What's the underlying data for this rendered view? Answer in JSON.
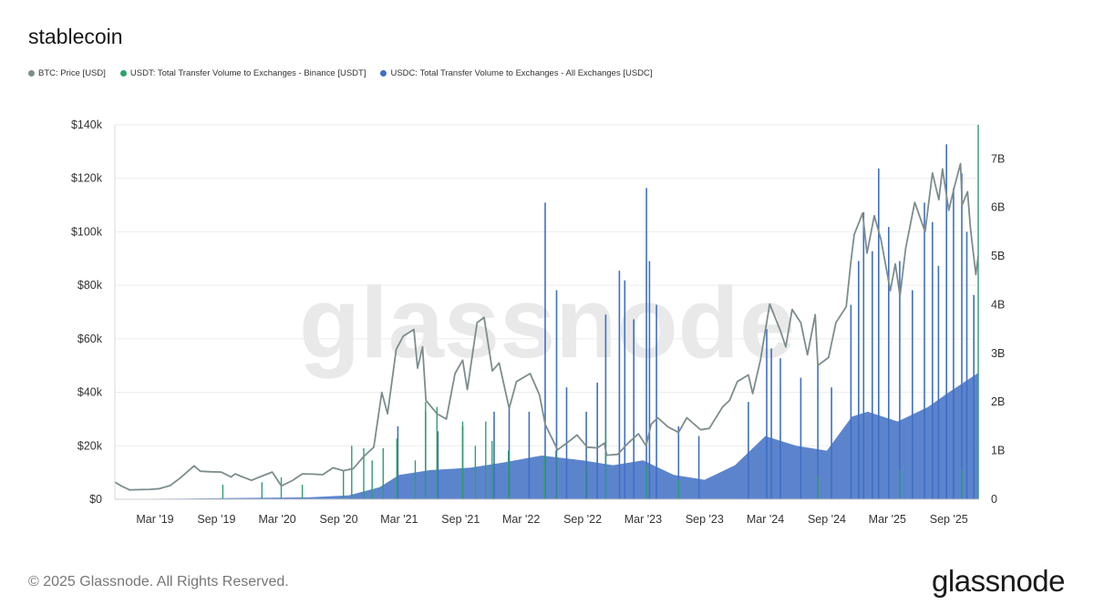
{
  "title": "stablecoin",
  "legend": [
    {
      "label": "BTC: Price [USD]",
      "color": "#7d8d8d"
    },
    {
      "label": "USDT: Total Transfer Volume to Exchanges - Binance [USDT]",
      "color": "#2f9e6e"
    },
    {
      "label": "USDC: Total Transfer Volume to Exchanges - All Exchanges [USDC]",
      "color": "#3f6fc4"
    }
  ],
  "watermark": "glassnode",
  "footer": {
    "copyright": "© 2025 Glassnode. All Rights Reserved.",
    "logo": "glassnode"
  },
  "chart_data": {
    "type": "line",
    "x_start": "2018-11-01",
    "x_end": "2025-11-28",
    "x_ticks": [
      {
        "date": "2019-03-01",
        "label": "Mar '19"
      },
      {
        "date": "2019-09-01",
        "label": "Sep '19"
      },
      {
        "date": "2020-03-01",
        "label": "Mar '20"
      },
      {
        "date": "2020-09-01",
        "label": "Sep '20"
      },
      {
        "date": "2021-03-01",
        "label": "Mar '21"
      },
      {
        "date": "2021-09-01",
        "label": "Sep '21"
      },
      {
        "date": "2022-03-01",
        "label": "Mar '22"
      },
      {
        "date": "2022-09-01",
        "label": "Sep '22"
      },
      {
        "date": "2023-03-01",
        "label": "Mar '23"
      },
      {
        "date": "2023-09-01",
        "label": "Sep '23"
      },
      {
        "date": "2024-03-01",
        "label": "Mar '24"
      },
      {
        "date": "2024-09-01",
        "label": "Sep '24"
      },
      {
        "date": "2025-03-01",
        "label": "Mar '25"
      },
      {
        "date": "2025-09-01",
        "label": "Sep '25"
      }
    ],
    "y_left": {
      "min": 0,
      "max": 140000,
      "ticks": [
        {
          "value": 0,
          "label": "$0"
        },
        {
          "value": 20000,
          "label": "$20k"
        },
        {
          "value": 40000,
          "label": "$40k"
        },
        {
          "value": 60000,
          "label": "$60k"
        },
        {
          "value": 80000,
          "label": "$80k"
        },
        {
          "value": 100000,
          "label": "$100k"
        },
        {
          "value": 120000,
          "label": "$120k"
        },
        {
          "value": 140000,
          "label": "$140k"
        }
      ]
    },
    "y_right": {
      "min": 0,
      "max": 7700000000,
      "ticks": [
        {
          "value": 0,
          "label": "0"
        },
        {
          "value": 1000000000,
          "label": "1B"
        },
        {
          "value": 2000000000,
          "label": "2B"
        },
        {
          "value": 3000000000,
          "label": "3B"
        },
        {
          "value": 4000000000,
          "label": "4B"
        },
        {
          "value": 5000000000,
          "label": "5B"
        },
        {
          "value": 6000000000,
          "label": "6B"
        },
        {
          "value": 7000000000,
          "label": "7B"
        }
      ]
    },
    "grid": true,
    "series": [
      {
        "name": "BTC: Price [USD]",
        "axis": "left",
        "color": "#7d8d8d",
        "points": [
          [
            "2018-11-01",
            6400
          ],
          [
            "2018-11-20",
            5000
          ],
          [
            "2018-12-15",
            3500
          ],
          [
            "2019-01-15",
            3600
          ],
          [
            "2019-02-15",
            3700
          ],
          [
            "2019-03-15",
            4000
          ],
          [
            "2019-04-15",
            5100
          ],
          [
            "2019-05-15",
            7900
          ],
          [
            "2019-06-26",
            12500
          ],
          [
            "2019-07-15",
            10500
          ],
          [
            "2019-08-15",
            10300
          ],
          [
            "2019-09-15",
            10200
          ],
          [
            "2019-10-15",
            8300
          ],
          [
            "2019-10-27",
            9500
          ],
          [
            "2019-11-15",
            8500
          ],
          [
            "2019-12-15",
            7100
          ],
          [
            "2020-01-15",
            8700
          ],
          [
            "2020-02-15",
            10200
          ],
          [
            "2020-03-13",
            5000
          ],
          [
            "2020-04-15",
            7000
          ],
          [
            "2020-05-15",
            9500
          ],
          [
            "2020-06-15",
            9400
          ],
          [
            "2020-07-15",
            9200
          ],
          [
            "2020-08-15",
            11800
          ],
          [
            "2020-09-15",
            10700
          ],
          [
            "2020-10-15",
            11500
          ],
          [
            "2020-11-15",
            16000
          ],
          [
            "2020-12-15",
            19500
          ],
          [
            "2021-01-08",
            40000
          ],
          [
            "2021-01-25",
            32000
          ],
          [
            "2021-02-20",
            56000
          ],
          [
            "2021-03-13",
            61000
          ],
          [
            "2021-04-14",
            63500
          ],
          [
            "2021-04-25",
            49000
          ],
          [
            "2021-05-10",
            57000
          ],
          [
            "2021-05-20",
            37000
          ],
          [
            "2021-06-22",
            32000
          ],
          [
            "2021-07-20",
            30000
          ],
          [
            "2021-08-15",
            47000
          ],
          [
            "2021-09-07",
            52000
          ],
          [
            "2021-09-21",
            41000
          ],
          [
            "2021-10-20",
            66000
          ],
          [
            "2021-11-10",
            68000
          ],
          [
            "2021-12-05",
            48000
          ],
          [
            "2021-12-25",
            51000
          ],
          [
            "2022-01-24",
            34000
          ],
          [
            "2022-02-15",
            44000
          ],
          [
            "2022-03-28",
            47000
          ],
          [
            "2022-04-25",
            39000
          ],
          [
            "2022-05-12",
            28000
          ],
          [
            "2022-06-18",
            18500
          ],
          [
            "2022-07-15",
            21000
          ],
          [
            "2022-08-15",
            24000
          ],
          [
            "2022-09-15",
            19500
          ],
          [
            "2022-10-15",
            19200
          ],
          [
            "2022-11-05",
            21000
          ],
          [
            "2022-11-12",
            16500
          ],
          [
            "2022-12-15",
            16800
          ],
          [
            "2023-01-15",
            21000
          ],
          [
            "2023-02-15",
            24500
          ],
          [
            "2023-03-10",
            20000
          ],
          [
            "2023-03-25",
            28000
          ],
          [
            "2023-04-14",
            30500
          ],
          [
            "2023-05-15",
            27000
          ],
          [
            "2023-06-15",
            25000
          ],
          [
            "2023-07-10",
            30500
          ],
          [
            "2023-08-20",
            26000
          ],
          [
            "2023-09-15",
            26500
          ],
          [
            "2023-10-25",
            34500
          ],
          [
            "2023-11-15",
            37000
          ],
          [
            "2023-12-08",
            44000
          ],
          [
            "2024-01-10",
            46500
          ],
          [
            "2024-01-23",
            39500
          ],
          [
            "2024-02-15",
            52000
          ],
          [
            "2024-03-14",
            73000
          ],
          [
            "2024-04-15",
            63000
          ],
          [
            "2024-05-01",
            57000
          ],
          [
            "2024-05-20",
            71000
          ],
          [
            "2024-06-15",
            66000
          ],
          [
            "2024-07-05",
            54000
          ],
          [
            "2024-07-28",
            69000
          ],
          [
            "2024-08-05",
            50000
          ],
          [
            "2024-09-06",
            53000
          ],
          [
            "2024-09-28",
            66000
          ],
          [
            "2024-10-29",
            72000
          ],
          [
            "2024-11-12",
            89000
          ],
          [
            "2024-11-22",
            99000
          ],
          [
            "2024-12-17",
            107000
          ],
          [
            "2024-12-30",
            92000
          ],
          [
            "2025-01-21",
            106000
          ],
          [
            "2025-02-10",
            97000
          ],
          [
            "2025-03-10",
            78000
          ],
          [
            "2025-03-25",
            88000
          ],
          [
            "2025-04-08",
            76000
          ],
          [
            "2025-04-25",
            94000
          ],
          [
            "2025-05-22",
            111000
          ],
          [
            "2025-06-22",
            100000
          ],
          [
            "2025-07-14",
            122000
          ],
          [
            "2025-08-02",
            112000
          ],
          [
            "2025-08-13",
            123500
          ],
          [
            "2025-09-01",
            108000
          ],
          [
            "2025-09-18",
            117000
          ],
          [
            "2025-10-06",
            125500
          ],
          [
            "2025-10-11",
            110000
          ],
          [
            "2025-10-27",
            115000
          ],
          [
            "2025-11-05",
            101000
          ],
          [
            "2025-11-21",
            84000
          ],
          [
            "2025-11-28",
            91000
          ]
        ]
      },
      {
        "name": "USDT: Total Transfer Volume to Exchanges - Binance [USDT]",
        "axis": "right",
        "color": "#2f9e6e",
        "spikes": [
          [
            "2019-09-20",
            300000000
          ],
          [
            "2020-01-15",
            350000000
          ],
          [
            "2020-03-13",
            450000000
          ],
          [
            "2020-05-15",
            300000000
          ],
          [
            "2020-09-15",
            600000000
          ],
          [
            "2020-10-10",
            1100000000
          ],
          [
            "2020-11-15",
            1050000000
          ],
          [
            "2020-12-10",
            800000000
          ],
          [
            "2021-01-12",
            1050000000
          ],
          [
            "2021-02-22",
            1250000000
          ],
          [
            "2021-04-18",
            800000000
          ],
          [
            "2021-05-19",
            2000000000
          ],
          [
            "2021-06-22",
            1900000000
          ],
          [
            "2021-09-07",
            1600000000
          ],
          [
            "2021-10-15",
            1100000000
          ],
          [
            "2021-11-15",
            1600000000
          ],
          [
            "2021-12-04",
            1200000000
          ],
          [
            "2022-01-22",
            1000000000
          ],
          [
            "2022-05-10",
            900000000
          ],
          [
            "2022-06-13",
            1000000000
          ],
          [
            "2022-09-15",
            700000000
          ],
          [
            "2022-11-09",
            1400000000
          ],
          [
            "2023-03-11",
            700000000
          ],
          [
            "2023-06-15",
            400000000
          ],
          [
            "2024-08-05",
            500000000
          ],
          [
            "2025-04-07",
            600000000
          ],
          [
            "2025-10-10",
            600000000
          ],
          [
            "2025-11-28",
            7700000000
          ]
        ]
      },
      {
        "name": "USDC: Total Transfer Volume to Exchanges - All Exchanges [USDC]",
        "axis": "right",
        "color": "#3f6fc4",
        "baseline": [
          [
            "2018-11-01",
            5000000
          ],
          [
            "2019-06-01",
            15000000
          ],
          [
            "2020-01-01",
            30000000
          ],
          [
            "2020-06-01",
            40000000
          ],
          [
            "2020-10-01",
            80000000
          ],
          [
            "2021-01-01",
            250000000
          ],
          [
            "2021-03-01",
            500000000
          ],
          [
            "2021-06-01",
            600000000
          ],
          [
            "2021-10-01",
            650000000
          ],
          [
            "2022-01-01",
            750000000
          ],
          [
            "2022-05-01",
            900000000
          ],
          [
            "2022-09-01",
            800000000
          ],
          [
            "2022-12-01",
            700000000
          ],
          [
            "2023-03-01",
            800000000
          ],
          [
            "2023-06-01",
            500000000
          ],
          [
            "2023-09-01",
            400000000
          ],
          [
            "2023-12-01",
            700000000
          ],
          [
            "2024-03-01",
            1300000000
          ],
          [
            "2024-06-01",
            1100000000
          ],
          [
            "2024-09-01",
            1000000000
          ],
          [
            "2024-11-15",
            1700000000
          ],
          [
            "2025-01-01",
            1800000000
          ],
          [
            "2025-04-01",
            1600000000
          ],
          [
            "2025-07-01",
            1900000000
          ],
          [
            "2025-09-01",
            2200000000
          ],
          [
            "2025-11-28",
            2600000000
          ]
        ],
        "spikes": [
          [
            "2021-02-25",
            1500000000
          ],
          [
            "2021-05-19",
            1800000000
          ],
          [
            "2021-06-25",
            1400000000
          ],
          [
            "2021-09-07",
            1500000000
          ],
          [
            "2021-12-10",
            1800000000
          ],
          [
            "2022-01-24",
            1900000000
          ],
          [
            "2022-03-25",
            1800000000
          ],
          [
            "2022-05-12",
            6100000000
          ],
          [
            "2022-06-15",
            4300000000
          ],
          [
            "2022-07-15",
            2300000000
          ],
          [
            "2022-09-12",
            1800000000
          ],
          [
            "2022-10-15",
            2400000000
          ],
          [
            "2022-11-09",
            3800000000
          ],
          [
            "2022-12-20",
            4700000000
          ],
          [
            "2023-01-05",
            4500000000
          ],
          [
            "2023-02-01",
            3700000000
          ],
          [
            "2023-03-11",
            6400000000
          ],
          [
            "2023-03-20",
            4900000000
          ],
          [
            "2023-04-10",
            4000000000
          ],
          [
            "2023-06-15",
            1500000000
          ],
          [
            "2023-08-15",
            1300000000
          ],
          [
            "2024-01-10",
            2000000000
          ],
          [
            "2024-03-05",
            3500000000
          ],
          [
            "2024-03-19",
            3100000000
          ],
          [
            "2024-04-15",
            2900000000
          ],
          [
            "2024-06-15",
            2500000000
          ],
          [
            "2024-08-05",
            2800000000
          ],
          [
            "2024-09-15",
            2300000000
          ],
          [
            "2024-11-12",
            4000000000
          ],
          [
            "2024-12-05",
            4900000000
          ],
          [
            "2024-12-20",
            5900000000
          ],
          [
            "2025-01-15",
            5100000000
          ],
          [
            "2025-02-03",
            6800000000
          ],
          [
            "2025-03-05",
            5600000000
          ],
          [
            "2025-04-07",
            4900000000
          ],
          [
            "2025-05-15",
            4300000000
          ],
          [
            "2025-06-20",
            6100000000
          ],
          [
            "2025-07-14",
            5700000000
          ],
          [
            "2025-08-01",
            4800000000
          ],
          [
            "2025-08-25",
            7300000000
          ],
          [
            "2025-09-15",
            6400000000
          ],
          [
            "2025-10-10",
            6700000000
          ],
          [
            "2025-10-25",
            5500000000
          ],
          [
            "2025-11-15",
            4200000000
          ]
        ]
      }
    ]
  }
}
